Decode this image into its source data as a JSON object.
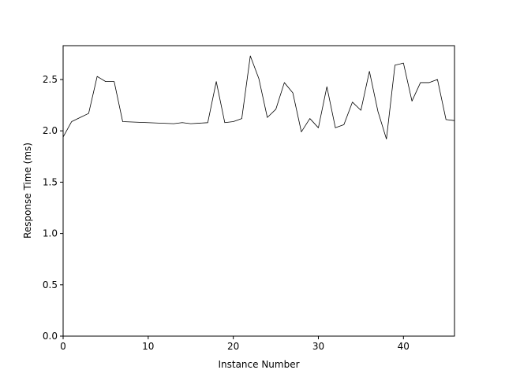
{
  "chart_data": {
    "type": "line",
    "title": "",
    "xlabel": "Instance Number",
    "ylabel": "Response Time (ms)",
    "xlim": [
      0,
      46
    ],
    "ylim": [
      0.0,
      2.83
    ],
    "xticks": [
      0,
      10,
      20,
      30,
      40
    ],
    "xtick_labels": [
      "0",
      "10",
      "20",
      "30",
      "40"
    ],
    "yticks": [
      0.0,
      0.5,
      1.0,
      1.5,
      2.0,
      2.5
    ],
    "ytick_labels": [
      "0.0",
      "0.5",
      "1.0",
      "1.5",
      "2.0",
      "2.5"
    ],
    "grid": false,
    "line_color": "#000000",
    "series": [
      {
        "x": [
          0,
          1,
          2,
          3,
          4,
          5,
          6,
          7,
          13,
          14,
          15,
          17,
          18,
          19,
          20,
          21,
          22,
          23,
          24,
          25,
          26,
          27,
          28,
          29,
          30,
          31,
          32,
          33,
          34,
          35,
          36,
          37,
          38,
          39,
          40,
          41,
          42,
          43,
          44,
          45,
          46
        ],
        "y": [
          1.94,
          2.09,
          2.13,
          2.17,
          2.53,
          2.48,
          2.48,
          2.09,
          2.07,
          2.08,
          2.07,
          2.08,
          2.48,
          2.08,
          2.09,
          2.12,
          2.73,
          2.51,
          2.13,
          2.21,
          2.47,
          2.37,
          1.99,
          2.12,
          2.03,
          2.43,
          2.03,
          2.06,
          2.28,
          2.2,
          2.58,
          2.19,
          1.92,
          2.64,
          2.66,
          2.29,
          2.47,
          2.47,
          2.5,
          2.11,
          2.1
        ]
      }
    ]
  }
}
